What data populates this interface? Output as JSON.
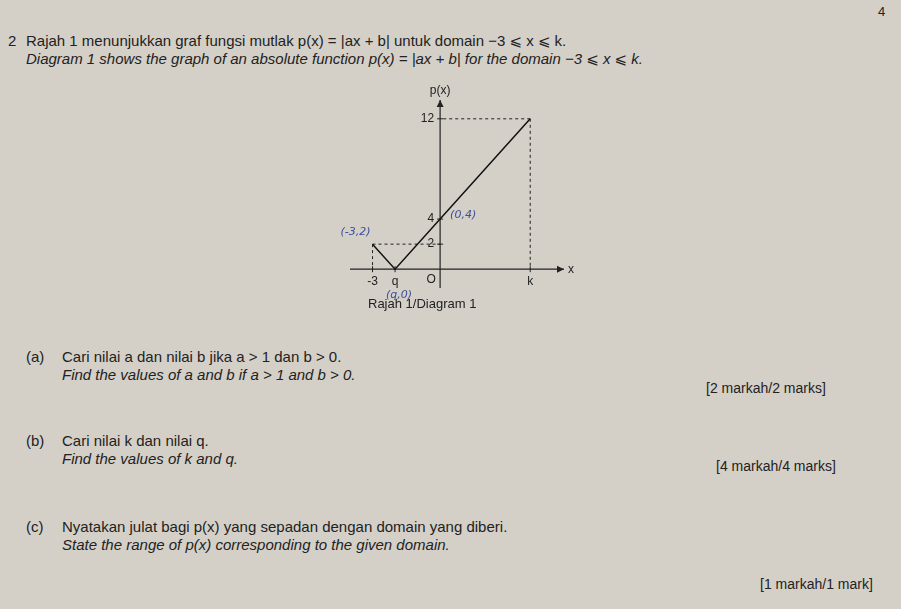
{
  "page_number": "4",
  "question": {
    "number": "2",
    "intro_ms": "Rajah 1 menunjukkan graf fungsi mutlak p(x) = |ax + b| untuk domain −3 ⩽ x ⩽ k.",
    "intro_en": "Diagram 1 shows the graph of an absolute function p(x) = |ax + b| for the domain −3 ⩽ x ⩽ k.",
    "caption": "Rajah 1/Diagram 1",
    "parts": [
      {
        "label": "(a)",
        "text_ms": "Cari nilai a dan nilai b jika a > 1 dan b > 0.",
        "text_en": "Find the values of a and b if a > 1 and b > 0.",
        "marks": "[2 markah/2 marks]"
      },
      {
        "label": "(b)",
        "text_ms": "Cari nilai k dan nilai q.",
        "text_en": "Find the values of k and q.",
        "marks": "[4 markah/4 marks]"
      },
      {
        "label": "(c)",
        "text_ms": "Nyatakan julat bagi p(x) yang sepadan dengan domain yang diberi.",
        "text_en": "State the range of p(x) corresponding to the given domain.",
        "marks": "[1 markah/1 mark]"
      }
    ]
  },
  "chart_data": {
    "type": "line",
    "x_label": "x",
    "y_label": "p(x)",
    "x": [
      -3,
      -2,
      0,
      4
    ],
    "values": [
      2,
      0,
      4,
      12
    ],
    "color": "#111111",
    "xlim": [
      -4,
      5.5
    ],
    "ylim": [
      -1.5,
      13.5
    ],
    "xticks": [
      -3,
      {
        "value": -2,
        "label": "q"
      },
      {
        "value": 0,
        "label": "O"
      },
      {
        "value": 4,
        "label": "k"
      }
    ],
    "yticks": [
      2,
      4,
      12
    ],
    "grid": false,
    "annotations": [
      {
        "text": "(-3,2)",
        "x": -3,
        "y": 2
      },
      {
        "text": "(0,4)",
        "x": 0,
        "y": 4
      },
      {
        "text": "(q,0)",
        "x": -2,
        "y": 0
      }
    ]
  }
}
